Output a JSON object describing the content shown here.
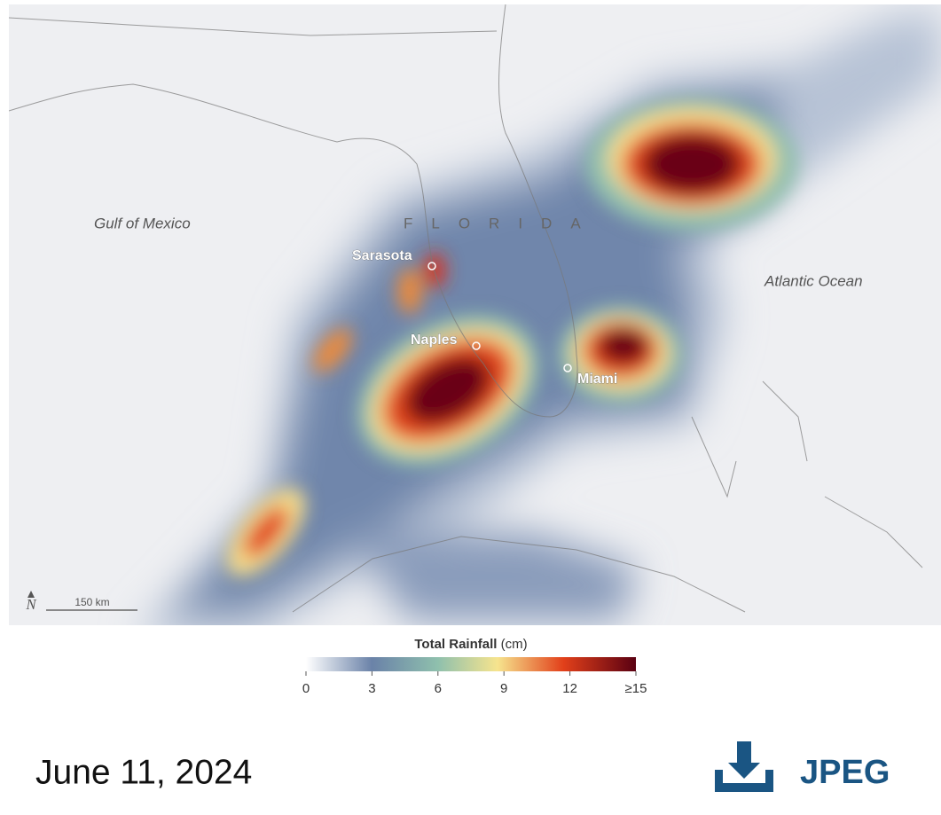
{
  "map": {
    "places": {
      "gulf": "Gulf of Mexico",
      "state": "FLORIDA",
      "ocean": "Atlantic Ocean"
    },
    "cities": [
      "Sarasota",
      "Naples",
      "Miami"
    ],
    "north": "N",
    "scale": "150 km",
    "legend": {
      "title": "Total Rainfall",
      "unit": "(cm)",
      "ticks": [
        0,
        3,
        6,
        9,
        12,
        {
          "value": 15,
          "label": "≥15"
        }
      ]
    }
  },
  "footer": {
    "date": "June 11, 2024",
    "download": "JPEG"
  }
}
